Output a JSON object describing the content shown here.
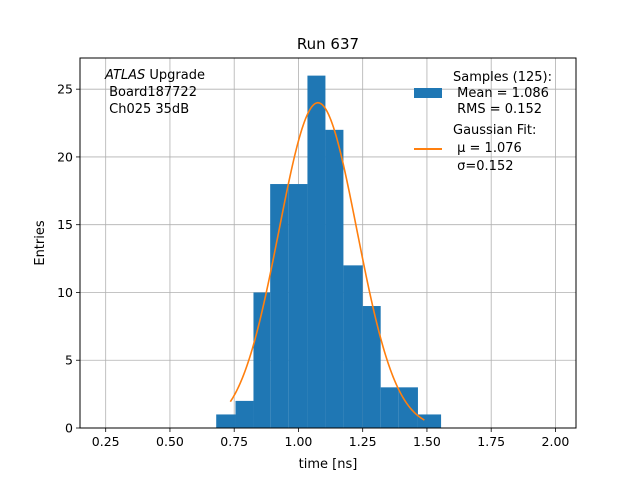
{
  "chart_data": {
    "type": "bar",
    "title": "Run 637",
    "xlabel": "time [ns]",
    "ylabel": "Entries",
    "xlim": [
      0.15,
      2.08
    ],
    "ylim": [
      0,
      27.3
    ],
    "xticks": [
      0.25,
      0.5,
      0.75,
      1.0,
      1.25,
      1.5,
      1.75,
      2.0
    ],
    "xtick_labels": [
      "0.25",
      "0.50",
      "0.75",
      "1.00",
      "1.25",
      "1.50",
      "1.75",
      "2.00"
    ],
    "yticks": [
      0,
      5,
      10,
      15,
      20,
      25
    ],
    "ytick_labels": [
      "0",
      "5",
      "10",
      "15",
      "20",
      "25"
    ],
    "grid": true,
    "histogram": {
      "bin_edges": [
        0.68,
        0.755,
        0.825,
        0.89,
        0.96,
        1.035,
        1.105,
        1.175,
        1.25,
        1.32,
        1.39,
        1.465,
        1.555
      ],
      "counts": [
        1,
        2,
        10,
        18,
        18,
        26,
        22,
        12,
        9,
        3,
        3,
        1
      ],
      "color": "#1f77b4"
    },
    "gaussian_fit": {
      "mu": 1.076,
      "sigma": 0.152,
      "amplitude": 24,
      "x_range": [
        0.735,
        1.49
      ],
      "color": "#ff7f0e"
    },
    "annotation": [
      "ATLAS Upgrade",
      " Board187722",
      " Ch025 35dB"
    ],
    "annotation_italic_word": "ATLAS",
    "legend": {
      "position": "top-right",
      "entries": [
        {
          "lines": [
            "Samples (125):",
            " Mean = 1.086",
            " RMS = 0.152"
          ],
          "color": "#1f77b4",
          "kind": "patch"
        },
        {
          "lines": [
            "Gaussian Fit:",
            " μ = 1.076",
            " σ=0.152"
          ],
          "color": "#ff7f0e",
          "kind": "line"
        }
      ]
    }
  }
}
